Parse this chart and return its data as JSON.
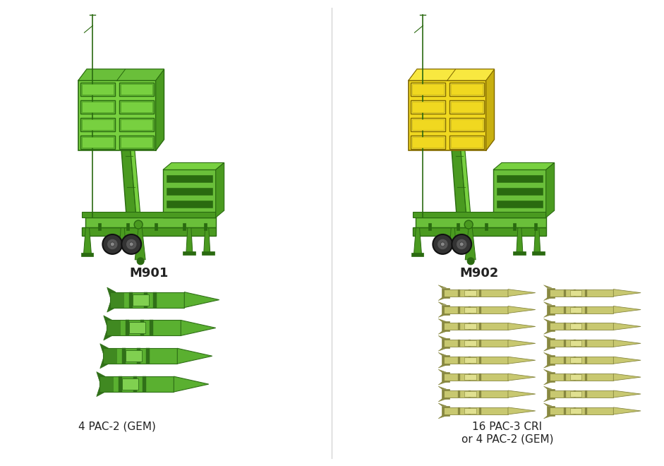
{
  "background_color": "#ffffff",
  "left_label": "M901",
  "right_label": "M902",
  "left_missile_label": "4 PAC-2 (GEM)",
  "right_missile_label": "16 PAC-3 CRI\nor 4 PAC-2 (GEM)",
  "label_fontsize": 13,
  "label_fontweight": "bold",
  "sublabel_fontsize": 11,
  "text_color": "#222222",
  "green_light": "#6abf3a",
  "green_mid": "#4a9a20",
  "green_dark": "#2a6a10",
  "green_bright": "#78d040",
  "blue_accent": "#1a3a88",
  "yellow_light": "#f0d820",
  "yellow_mid": "#c8b010",
  "yellow_dark": "#806800",
  "grey_dark": "#333333",
  "grey_mid": "#555555",
  "pac2_body": "#5ab030",
  "pac2_dark": "#307018",
  "pac2_light": "#80d050",
  "pac3_body": "#c8c870",
  "pac3_dark": "#888840",
  "pac3_light": "#e0e090",
  "fig_width": 9.41,
  "fig_height": 6.6,
  "dpi": 100
}
